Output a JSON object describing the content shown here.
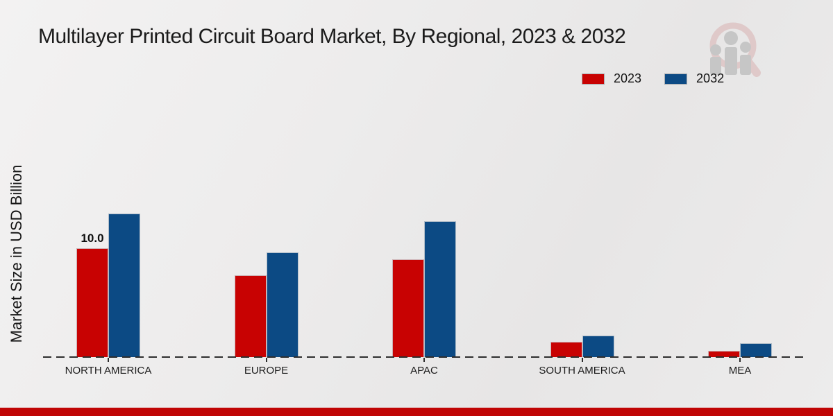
{
  "title": "Multilayer Printed Circuit Board Market, By Regional, 2023 & 2032",
  "y_axis_label": "Market Size in USD Billion",
  "footer": {
    "accent_color": "#c00505"
  },
  "chart_data": {
    "type": "bar",
    "title": "Multilayer Printed Circuit Board Market, By Regional, 2023 & 2032",
    "xlabel": "",
    "ylabel": "Market Size in USD Billion",
    "categories": [
      "NORTH AMERICA",
      "EUROPE",
      "APAC",
      "SOUTH AMERICA",
      "MEA"
    ],
    "series": [
      {
        "name": "2023",
        "color": "#c80202",
        "values": [
          10.0,
          7.5,
          9.0,
          1.4,
          0.6
        ]
      },
      {
        "name": "2032",
        "color": "#0c4a84",
        "values": [
          13.2,
          9.6,
          12.5,
          1.95,
          1.25
        ]
      }
    ],
    "annotations": [
      {
        "series_index": 0,
        "category_index": 0,
        "text": "10.0"
      }
    ],
    "ylim": [
      0,
      14.5
    ],
    "grid": false,
    "legend_position": "top-right",
    "baseline_style": "dashed"
  }
}
